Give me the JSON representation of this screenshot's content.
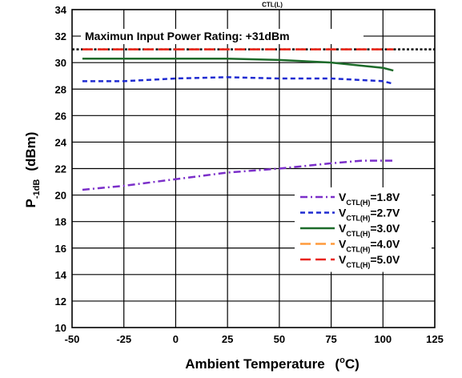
{
  "chart_data": {
    "type": "line",
    "title_fragment": "CTL(L)",
    "xlabel": "Ambient Temperature",
    "xlabel_unit_pre": "(",
    "xlabel_unit_sup": "o",
    "xlabel_unit_post": "C)",
    "ylabel_main": "P",
    "ylabel_sub": "-1dB",
    "ylabel_unit": "(dBm)",
    "xlim": [
      -50,
      125
    ],
    "ylim": [
      10,
      34
    ],
    "xticks": [
      -50,
      -25,
      0,
      25,
      50,
      75,
      100,
      125
    ],
    "yticks": [
      10,
      12,
      14,
      16,
      18,
      20,
      22,
      24,
      26,
      28,
      30,
      32,
      34
    ],
    "grid": true,
    "annotation": {
      "text": "Maximun Input Power Rating: +31dBm",
      "value": 31
    },
    "legend": {
      "placement": "bottom-right",
      "prefix": "V",
      "sub": "CTL(H)"
    },
    "series": [
      {
        "name": "=1.8V",
        "color": "#7b2fc9",
        "dash": "dashdot",
        "x": [
          -45,
          -25,
          0,
          25,
          50,
          75,
          90,
          105
        ],
        "y": [
          20.4,
          20.7,
          21.2,
          21.7,
          22.0,
          22.4,
          22.6,
          22.6
        ]
      },
      {
        "name": "=2.7V",
        "color": "#1f2bd1",
        "dash": "dash",
        "x": [
          -45,
          -25,
          0,
          25,
          50,
          75,
          100,
          105
        ],
        "y": [
          28.6,
          28.6,
          28.8,
          28.9,
          28.8,
          28.8,
          28.6,
          28.4
        ]
      },
      {
        "name": "=3.0V",
        "color": "#1d6b2a",
        "dash": "solid",
        "x": [
          -45,
          -25,
          0,
          25,
          50,
          75,
          100,
          105
        ],
        "y": [
          30.3,
          30.3,
          30.3,
          30.3,
          30.2,
          30.0,
          29.6,
          29.4
        ]
      },
      {
        "name": "=4.0V",
        "color": "#ff9a3c",
        "dash": "longdash",
        "x": [
          -45,
          -25,
          0,
          25,
          50,
          75,
          100,
          105
        ],
        "y": [
          31.0,
          31.0,
          31.0,
          31.0,
          31.0,
          31.0,
          31.0,
          31.0
        ]
      },
      {
        "name": "=5.0V",
        "color": "#e8231c",
        "dash": "longdash",
        "x": [
          -45,
          -25,
          0,
          25,
          50,
          75,
          100,
          105
        ],
        "y": [
          31.0,
          31.0,
          31.0,
          31.0,
          31.0,
          31.0,
          31.0,
          31.0
        ]
      }
    ]
  }
}
